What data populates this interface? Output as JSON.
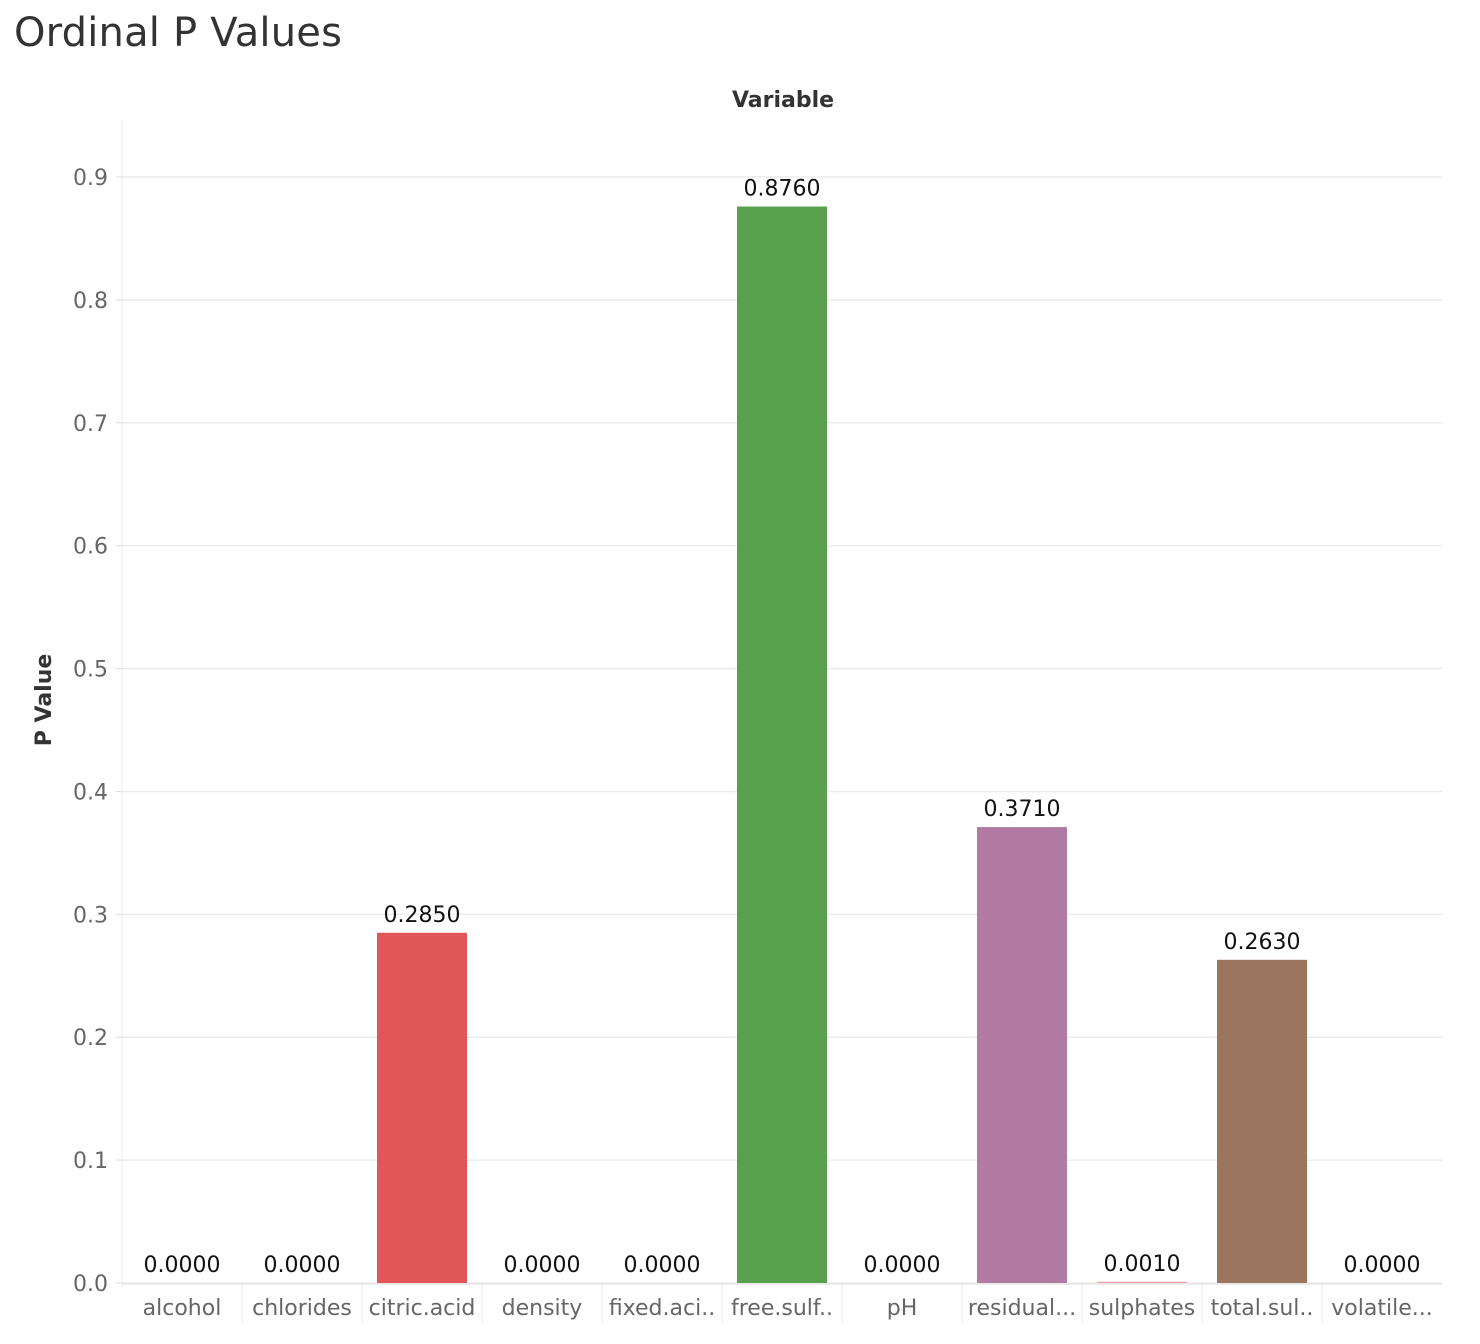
{
  "chart_data": {
    "type": "bar",
    "title": "Ordinal P Values",
    "xlabel": "Variable",
    "ylabel": "P Value",
    "ylim": [
      0,
      0.9
    ],
    "yticks": [
      "0.0",
      "0.1",
      "0.2",
      "0.3",
      "0.4",
      "0.5",
      "0.6",
      "0.7",
      "0.8",
      "0.9"
    ],
    "grid": true,
    "legend": "none",
    "categories": [
      "alcohol",
      "chlorides",
      "citric.acid",
      "density",
      "fixed.aci..",
      "free.sulf..",
      "pH",
      "residual...",
      "sulphates",
      "total.sul..",
      "volatile..."
    ],
    "values": [
      0.0,
      0.0,
      0.285,
      0.0,
      0.0,
      0.876,
      0.0,
      0.371,
      0.001,
      0.263,
      0.0
    ],
    "value_labels": [
      "0.0000",
      "0.0000",
      "0.2850",
      "0.0000",
      "0.0000",
      "0.8760",
      "0.0000",
      "0.3710",
      "0.0010",
      "0.2630",
      "0.0000"
    ],
    "colors": [
      "#4e79a7",
      "#f28e2b",
      "#e15759",
      "#76b7b2",
      "#59a14f",
      "#59a14f",
      "#edc948",
      "#b07aa1",
      "#ff9da7",
      "#9c755f",
      "#bab0ac"
    ]
  }
}
